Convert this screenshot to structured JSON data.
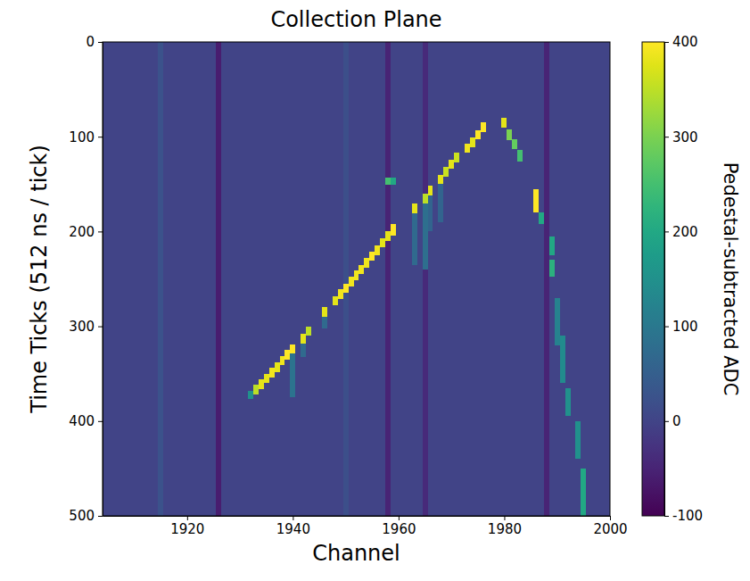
{
  "chart_data": {
    "type": "heatmap",
    "title": "Collection Plane",
    "x_label": "Channel",
    "y_label": "Time Ticks (512 ns / tick)",
    "xlim": [
      1904,
      2000
    ],
    "xticks": [
      1920,
      1940,
      1960,
      1980,
      2000
    ],
    "ylim": [
      0,
      500
    ],
    "yticks": [
      0,
      100,
      200,
      300,
      400,
      500
    ],
    "colorbar_label": "Pedestal-subtracted ADC",
    "clim": [
      -100,
      400
    ],
    "cticks": [
      -100,
      0,
      100,
      200,
      300,
      400
    ],
    "cells": [
      {
        "channels": [
          1904,
          2000
        ],
        "ticks": [
          0,
          500
        ],
        "adc": 0
      },
      {
        "channels": [
          1925.5,
          1926.5
        ],
        "ticks": [
          0,
          500
        ],
        "adc": -60
      },
      {
        "channels": [
          1957.5,
          1958.5
        ],
        "ticks": [
          0,
          500
        ],
        "adc": -50
      },
      {
        "channels": [
          1964.5,
          1965.5
        ],
        "ticks": [
          0,
          500
        ],
        "adc": -40
      },
      {
        "channels": [
          1987.5,
          1988.5
        ],
        "ticks": [
          0,
          500
        ],
        "adc": -50
      },
      {
        "channels": [
          1914.5,
          1915.5
        ],
        "ticks": [
          0,
          500
        ],
        "adc": 25
      },
      {
        "channels": [
          1949.5,
          1950.5
        ],
        "ticks": [
          0,
          500
        ],
        "adc": 20
      },
      {
        "channels": [
          1939.5,
          1940.5
        ],
        "ticks": [
          328,
          375
        ],
        "adc": 90
      },
      {
        "channels": [
          1941.5,
          1942.5
        ],
        "ticks": [
          317,
          332
        ],
        "adc": 70
      },
      {
        "channels": [
          1945.5,
          1946.5
        ],
        "ticks": [
          289,
          302
        ],
        "adc": 70
      },
      {
        "channels": [
          1962.5,
          1963.5
        ],
        "ticks": [
          180,
          235
        ],
        "adc": 70
      },
      {
        "channels": [
          1964.5,
          1965.5
        ],
        "ticks": [
          170,
          240
        ],
        "adc": 80
      },
      {
        "channels": [
          1965.5,
          1966.5
        ],
        "ticks": [
          161,
          200
        ],
        "adc": 60
      },
      {
        "channels": [
          1967.5,
          1968.5
        ],
        "ticks": [
          149,
          190
        ],
        "adc": 60
      },
      {
        "channels": [
          1931.5,
          1932.5
        ],
        "ticks": [
          368,
          377
        ],
        "adc": 150
      },
      {
        "channels": [
          1932.5,
          1933.5
        ],
        "ticks": [
          362,
          372
        ],
        "adc": 350
      },
      {
        "channels": [
          1933.5,
          1934.5
        ],
        "ticks": [
          356,
          366
        ],
        "adc": 380
      },
      {
        "channels": [
          1934.5,
          1935.5
        ],
        "ticks": [
          350,
          360
        ],
        "adc": 380
      },
      {
        "channels": [
          1935.5,
          1936.5
        ],
        "ticks": [
          344,
          354
        ],
        "adc": 390
      },
      {
        "channels": [
          1936.5,
          1937.5
        ],
        "ticks": [
          338,
          348
        ],
        "adc": 380
      },
      {
        "channels": [
          1937.5,
          1938.5
        ],
        "ticks": [
          331,
          341
        ],
        "adc": 390
      },
      {
        "channels": [
          1938.5,
          1939.5
        ],
        "ticks": [
          325,
          335
        ],
        "adc": 400
      },
      {
        "channels": [
          1939.5,
          1940.5
        ],
        "ticks": [
          319,
          329
        ],
        "adc": 400
      },
      {
        "channels": [
          1941.5,
          1942.5
        ],
        "ticks": [
          308,
          318
        ],
        "adc": 380
      },
      {
        "channels": [
          1942.5,
          1943.5
        ],
        "ticks": [
          300,
          310
        ],
        "adc": 350
      },
      {
        "channels": [
          1945.5,
          1946.5
        ],
        "ticks": [
          280,
          290
        ],
        "adc": 380
      },
      {
        "channels": [
          1947.5,
          1948.5
        ],
        "ticks": [
          268,
          278
        ],
        "adc": 380
      },
      {
        "channels": [
          1948.5,
          1949.5
        ],
        "ticks": [
          261,
          271
        ],
        "adc": 390
      },
      {
        "channels": [
          1949.5,
          1950.5
        ],
        "ticks": [
          255,
          265
        ],
        "adc": 400
      },
      {
        "channels": [
          1950.5,
          1951.5
        ],
        "ticks": [
          248,
          258
        ],
        "adc": 390
      },
      {
        "channels": [
          1951.5,
          1952.5
        ],
        "ticks": [
          241,
          251
        ],
        "adc": 390
      },
      {
        "channels": [
          1952.5,
          1953.5
        ],
        "ticks": [
          235,
          245
        ],
        "adc": 390
      },
      {
        "channels": [
          1953.5,
          1954.5
        ],
        "ticks": [
          228,
          238
        ],
        "adc": 390
      },
      {
        "channels": [
          1954.5,
          1955.5
        ],
        "ticks": [
          221,
          231
        ],
        "adc": 400
      },
      {
        "channels": [
          1955.5,
          1956.5
        ],
        "ticks": [
          215,
          225
        ],
        "adc": 390
      },
      {
        "channels": [
          1956.5,
          1957.5
        ],
        "ticks": [
          207,
          217
        ],
        "adc": 380
      },
      {
        "channels": [
          1957.5,
          1958.5
        ],
        "ticks": [
          200,
          210
        ],
        "adc": 380
      },
      {
        "channels": [
          1958.5,
          1959.5
        ],
        "ticks": [
          192,
          204
        ],
        "adc": 400
      },
      {
        "channels": [
          1957.5,
          1958.5
        ],
        "ticks": [
          143,
          151
        ],
        "adc": 250
      },
      {
        "channels": [
          1958.5,
          1959.5
        ],
        "ticks": [
          143,
          151
        ],
        "adc": 200
      },
      {
        "channels": [
          1962.5,
          1963.5
        ],
        "ticks": [
          170,
          181
        ],
        "adc": 380
      },
      {
        "channels": [
          1964.5,
          1965.5
        ],
        "ticks": [
          160,
          170
        ],
        "adc": 350
      },
      {
        "channels": [
          1965.5,
          1966.5
        ],
        "ticks": [
          152,
          162
        ],
        "adc": 380
      },
      {
        "channels": [
          1967.5,
          1968.5
        ],
        "ticks": [
          140,
          150
        ],
        "adc": 380
      },
      {
        "channels": [
          1968.5,
          1969.5
        ],
        "ticks": [
          132,
          142
        ],
        "adc": 360
      },
      {
        "channels": [
          1969.5,
          1970.5
        ],
        "ticks": [
          124,
          134
        ],
        "adc": 380
      },
      {
        "channels": [
          1970.5,
          1971.5
        ],
        "ticks": [
          117,
          127
        ],
        "adc": 360
      },
      {
        "channels": [
          1972.5,
          1973.5
        ],
        "ticks": [
          107,
          117
        ],
        "adc": 390
      },
      {
        "channels": [
          1973.5,
          1974.5
        ],
        "ticks": [
          101,
          111
        ],
        "adc": 380
      },
      {
        "channels": [
          1974.5,
          1975.5
        ],
        "ticks": [
          93,
          103
        ],
        "adc": 400
      },
      {
        "channels": [
          1975.5,
          1976.5
        ],
        "ticks": [
          85,
          95
        ],
        "adc": 400
      },
      {
        "channels": [
          1979.5,
          1980.5
        ],
        "ticks": [
          80,
          90
        ],
        "adc": 380
      },
      {
        "channels": [
          1980.5,
          1981.5
        ],
        "ticks": [
          92,
          104
        ],
        "adc": 300
      },
      {
        "channels": [
          1981.5,
          1982.5
        ],
        "ticks": [
          103,
          113
        ],
        "adc": 280
      },
      {
        "channels": [
          1982.5,
          1983.5
        ],
        "ticks": [
          114,
          126
        ],
        "adc": 250
      },
      {
        "channels": [
          1985.5,
          1986.5
        ],
        "ticks": [
          155,
          180
        ],
        "adc": 400
      },
      {
        "channels": [
          1986.5,
          1987.5
        ],
        "ticks": [
          180,
          192
        ],
        "adc": 200
      },
      {
        "channels": [
          1988.5,
          1989.5
        ],
        "ticks": [
          205,
          225
        ],
        "adc": 200
      },
      {
        "channels": [
          1988.5,
          1989.5
        ],
        "ticks": [
          230,
          248
        ],
        "adc": 220
      },
      {
        "channels": [
          1989.5,
          1990.5
        ],
        "ticks": [
          270,
          320
        ],
        "adc": 120
      },
      {
        "channels": [
          1990.5,
          1991.5
        ],
        "ticks": [
          310,
          360
        ],
        "adc": 140
      },
      {
        "channels": [
          1991.5,
          1992.5
        ],
        "ticks": [
          365,
          395
        ],
        "adc": 150
      },
      {
        "channels": [
          1993.5,
          1994.5
        ],
        "ticks": [
          400,
          440
        ],
        "adc": 150
      },
      {
        "channels": [
          1994.5,
          1995.5
        ],
        "ticks": [
          450,
          500
        ],
        "adc": 200
      }
    ]
  }
}
